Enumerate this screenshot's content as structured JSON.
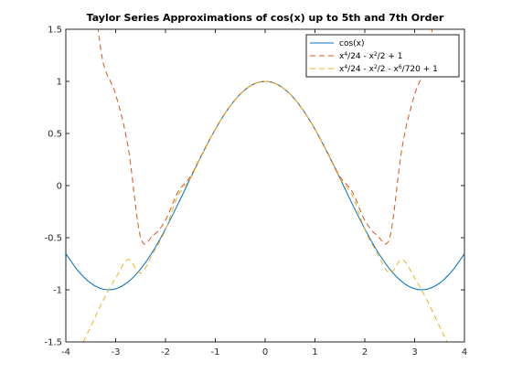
{
  "chart_data": {
    "type": "line",
    "title": "Taylor Series Approximations of cos(x) up to 5th and 7th Order",
    "xlabel": "",
    "ylabel": "",
    "xlim": [
      -4,
      4
    ],
    "ylim": [
      -1.5,
      1.5
    ],
    "x_ticks": [
      -4,
      -3,
      -2,
      -1,
      0,
      1,
      2,
      3,
      4
    ],
    "y_ticks": [
      -1.5,
      -1,
      -0.5,
      0,
      0.5,
      1,
      1.5
    ],
    "x_tick_labels": [
      "-4",
      "-3",
      "-2",
      "-1",
      "0",
      "1",
      "2",
      "3",
      "4"
    ],
    "y_tick_labels": [
      "-1.5",
      "-1",
      "-0.5",
      "0",
      "0.5",
      "1",
      "1.5"
    ],
    "grid": false,
    "legend_position": "top-right",
    "series": [
      {
        "name": "cos(x)",
        "legend_parts": [
          {
            "t": "cos(x)"
          }
        ],
        "color": "#0072BD",
        "dash": "solid",
        "x": [
          -4,
          -3.75,
          -3.5,
          -3.25,
          -3,
          -2.75,
          -2.5,
          -2.25,
          -2,
          -1.75,
          -1.5,
          -1.25,
          -1,
          -0.75,
          -0.5,
          -0.25,
          0,
          0.25,
          0.5,
          0.75,
          1,
          1.25,
          1.5,
          1.75,
          2,
          2.25,
          2.5,
          2.75,
          3,
          3.25,
          3.5,
          3.75,
          4
        ],
        "y": [
          -0.654,
          -0.82,
          -0.936,
          -0.994,
          -0.99,
          -0.924,
          -0.801,
          -0.628,
          -0.416,
          -0.178,
          0.071,
          0.315,
          0.54,
          0.732,
          0.878,
          0.969,
          1.0,
          0.969,
          0.878,
          0.732,
          0.54,
          0.315,
          0.071,
          -0.178,
          -0.416,
          -0.628,
          -0.801,
          -0.924,
          -0.99,
          -0.994,
          -0.936,
          -0.82,
          -0.654
        ]
      },
      {
        "name": "x^4/24 - x^2/2 + 1",
        "legend_parts": [
          {
            "t": "x"
          },
          {
            "t": "4",
            "sup": true
          },
          {
            "t": "/24 - x"
          },
          {
            "t": "2",
            "sup": true
          },
          {
            "t": "/2 + 1"
          }
        ],
        "color": "#D95319",
        "dash": "dashed",
        "x": [
          -3.4,
          -3.25,
          -3,
          -2.75,
          -2.5,
          -2.25,
          -2,
          -1.75,
          -1.5,
          -1.25,
          -1,
          -0.75,
          -0.5,
          -0.25,
          0,
          0.25,
          0.5,
          0.75,
          1,
          1.25,
          1.5,
          1.75,
          2,
          2.25,
          2.5,
          2.75,
          3,
          3.25,
          3.4
        ],
        "y": [
          1.701,
          1.178,
          0.875,
          0.369,
          -0.497,
          -0.478,
          -0.333,
          -0.061,
          0.086,
          0.321,
          0.542,
          0.732,
          0.878,
          0.969,
          1.0,
          0.969,
          0.878,
          0.732,
          0.542,
          0.321,
          0.086,
          -0.061,
          -0.333,
          -0.478,
          -0.497,
          0.369,
          0.875,
          1.178,
          1.701
        ]
      },
      {
        "name": "x^4/24 - x^2/2 - x^6/720 + 1",
        "legend_parts": [
          {
            "t": "x"
          },
          {
            "t": "4",
            "sup": true
          },
          {
            "t": "/24 - x"
          },
          {
            "t": "2",
            "sup": true
          },
          {
            "t": "/2 - x"
          },
          {
            "t": "6",
            "sup": true
          },
          {
            "t": "/720 + 1"
          }
        ],
        "color": "#EDB120",
        "dash": "dashed",
        "x": [
          -3.65,
          -3.5,
          -3.25,
          -3,
          -2.75,
          -2.5,
          -2.25,
          -2,
          -1.75,
          -1.5,
          -1.25,
          -1,
          -0.75,
          -0.5,
          -0.25,
          0,
          0.25,
          0.5,
          0.75,
          1,
          1.25,
          1.5,
          1.75,
          2,
          2.25,
          2.5,
          2.75,
          3,
          3.25,
          3.5,
          3.65
        ],
        "y": [
          -1.5,
          -1.352,
          -1.1,
          -0.887,
          -0.71,
          -0.839,
          -0.651,
          -0.422,
          -0.098,
          0.07,
          0.316,
          0.54,
          0.732,
          0.878,
          0.969,
          1.0,
          0.969,
          0.878,
          0.732,
          0.54,
          0.316,
          0.07,
          -0.098,
          -0.422,
          -0.651,
          -0.839,
          -0.71,
          -0.887,
          -1.1,
          -1.352,
          -1.5
        ]
      }
    ]
  }
}
